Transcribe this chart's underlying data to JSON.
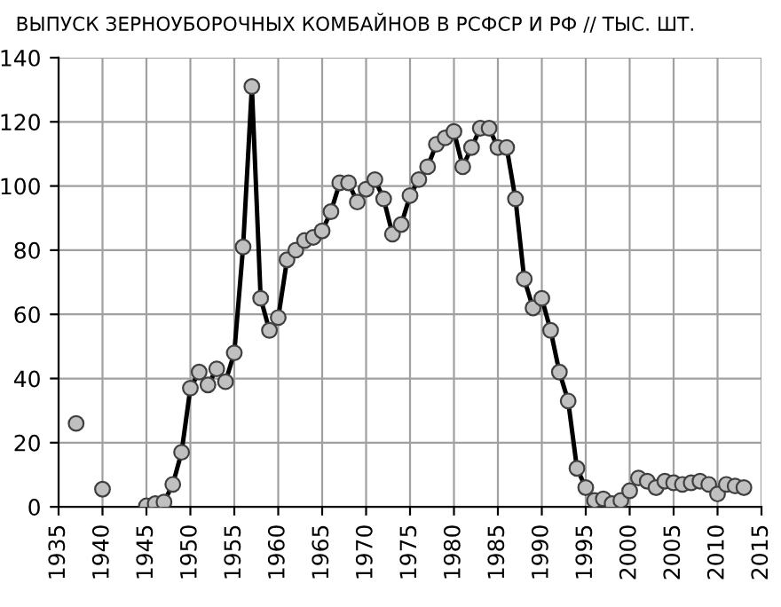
{
  "chart_data": {
    "type": "line",
    "title": "ВЫПУСК ЗЕРНОУБОРОЧНЫХ КОМБАЙНОВ В РСФСР И РФ // ТЫС. ШТ.",
    "xlim": [
      1935,
      2015
    ],
    "xticks": [
      1935,
      1940,
      1945,
      1950,
      1955,
      1960,
      1965,
      1970,
      1975,
      1980,
      1985,
      1990,
      1995,
      2000,
      2005,
      2010,
      2015
    ],
    "ylim": [
      0,
      140
    ],
    "yticks": [
      0,
      20,
      40,
      60,
      80,
      100,
      120,
      140
    ],
    "grid": true,
    "marker": "circle",
    "line_style": "solid",
    "series": [
      {
        "type": "scatter",
        "color": "#c0c0c0",
        "x": [
          1937,
          1940
        ],
        "values": [
          26,
          5.5
        ]
      },
      {
        "color": "#000000",
        "x": [
          1945,
          1946,
          1947,
          1948,
          1949,
          1950,
          1951,
          1952,
          1953,
          1954,
          1955,
          1956,
          1957,
          1958,
          1959,
          1960,
          1961,
          1962,
          1963,
          1964,
          1965,
          1966,
          1967,
          1968,
          1969,
          1970,
          1971,
          1972,
          1973,
          1974,
          1975,
          1976,
          1977,
          1978,
          1979,
          1980,
          1981,
          1982,
          1983,
          1984,
          1985,
          1986,
          1987,
          1988,
          1989,
          1990,
          1991,
          1992,
          1993,
          1994,
          1995,
          1996,
          1997,
          1998,
          1999,
          2000,
          2001,
          2002,
          2003,
          2004,
          2005,
          2006,
          2007,
          2008,
          2009,
          2010,
          2011,
          2012,
          2013
        ],
        "values": [
          0.3,
          1,
          1.5,
          7,
          17,
          37,
          42,
          38,
          43,
          39,
          48,
          81,
          131,
          65,
          55,
          59,
          77,
          80,
          83,
          84,
          86,
          92,
          101,
          101,
          95,
          99,
          102,
          96,
          85,
          88,
          97,
          102,
          106,
          113,
          115,
          117,
          106,
          112,
          118,
          118,
          112,
          112,
          96,
          71,
          62,
          65,
          55,
          42,
          33,
          12,
          6,
          2,
          2.5,
          1,
          2,
          5,
          9,
          8,
          6,
          8,
          7.5,
          7,
          7.5,
          8,
          7,
          4,
          7,
          6.5,
          6
        ]
      }
    ]
  }
}
